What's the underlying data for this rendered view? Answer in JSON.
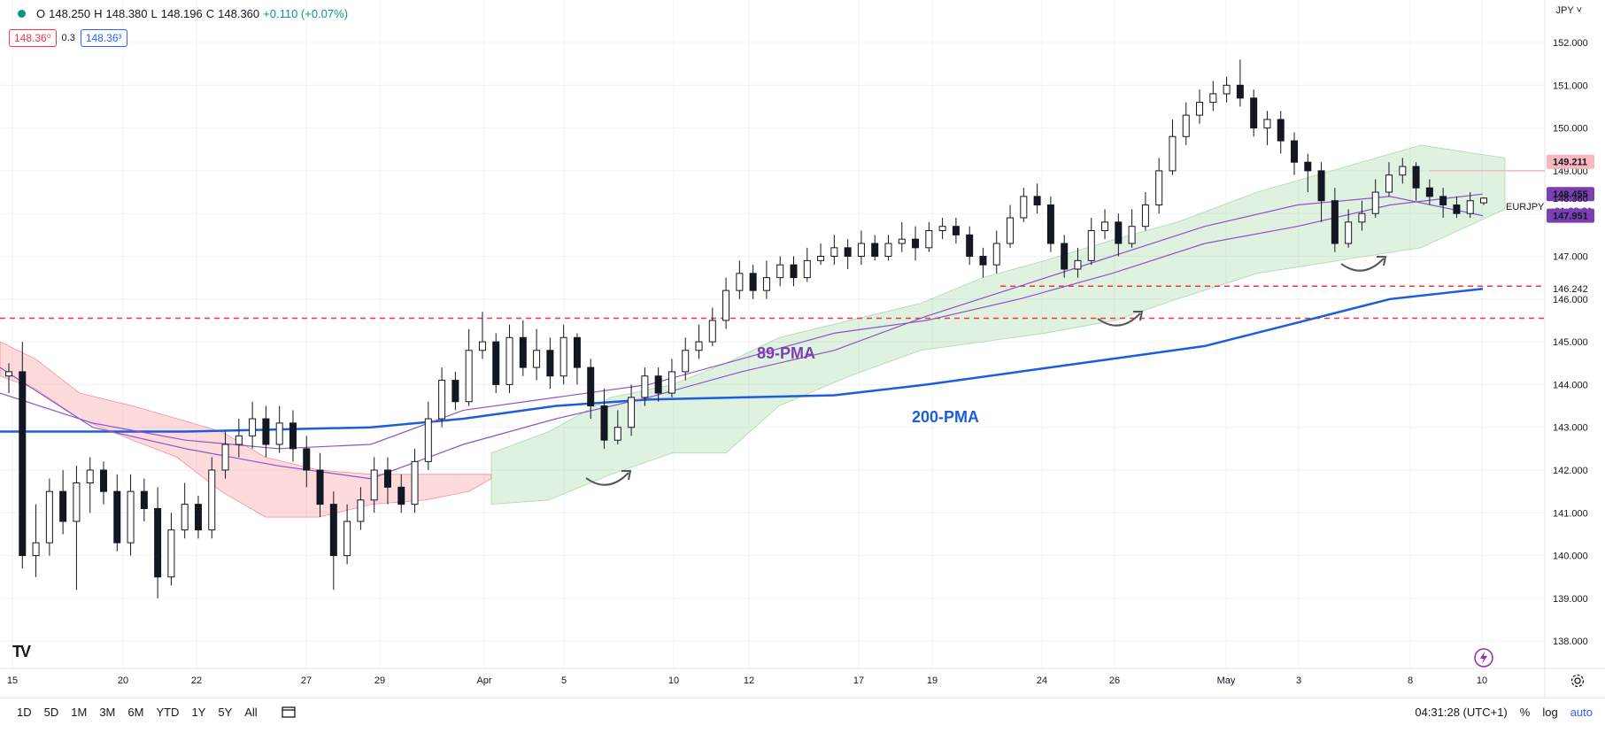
{
  "header": {
    "open_label": "O",
    "open": "148.250",
    "high_label": "H",
    "high": "148.380",
    "low_label": "L",
    "low": "148.196",
    "close_label": "C",
    "close": "148.360",
    "change": "+0.110 (+0.07%)",
    "sell_price": "148.36⁰",
    "spread": "0.3",
    "buy_price": "148.36³",
    "currency": "JPY"
  },
  "bottom_bar": {
    "ranges": [
      "1D",
      "5D",
      "1M",
      "3M",
      "6M",
      "YTD",
      "1Y",
      "5Y",
      "All"
    ],
    "clock": "04:31:28 (UTC+1)",
    "percent_label": "%",
    "log_label": "log",
    "auto_label": "auto"
  },
  "logo": "TV",
  "chart_data": {
    "type": "line",
    "symbol": "EURJPY",
    "ylim": [
      137.8,
      152.5
    ],
    "y_ticks": [
      138.0,
      139.0,
      140.0,
      141.0,
      142.0,
      143.0,
      144.0,
      145.0,
      146.0,
      147.0,
      148.0,
      149.0,
      150.0,
      151.0,
      152.0
    ],
    "x_tick_labels": [
      "15",
      "20",
      "22",
      "27",
      "29",
      "Apr",
      "5",
      "10",
      "12",
      "17",
      "19",
      "24",
      "26",
      "May",
      "3",
      "8",
      "10"
    ],
    "annotations": [
      "89-PMA",
      "200-PMA"
    ],
    "price_tags": [
      {
        "value": 149.211,
        "label": "149.211",
        "color": "#f7b7bc",
        "text_color": "#131722"
      },
      {
        "value": 148.455,
        "label": "148.455",
        "color": "#7b3fb4",
        "text_color": "#ffffff"
      },
      {
        "value": 148.36,
        "label": "148.360",
        "extra": "01:28:31",
        "color": "#ffffff",
        "text_color": "#131722"
      },
      {
        "value": 147.951,
        "label": "147.951",
        "color": "#7b3fb4",
        "text_color": "#ffffff"
      },
      {
        "value": 146.242,
        "label": "146.242",
        "color": "#ffffff",
        "text_color": "#131722"
      }
    ],
    "horizontal_levels": [
      145.55,
      146.3,
      149.0
    ],
    "series": [
      {
        "name": "200-PMA",
        "color": "#1e5cdf",
        "values": [
          142.9,
          142.9,
          142.9,
          142.95,
          143.0,
          143.2,
          143.5,
          143.65,
          143.7,
          143.75,
          144.0,
          144.3,
          144.6,
          144.9,
          145.45,
          146.0,
          146.24
        ]
      },
      {
        "name": "89-PMA",
        "color": "#8a55c9",
        "values": [
          143.8,
          143.1,
          142.7,
          142.5,
          142.6,
          143.4,
          143.7,
          144.0,
          144.6,
          145.2,
          145.5,
          146.0,
          146.6,
          147.3,
          147.7,
          148.2,
          148.455
        ]
      },
      {
        "values": [
          144.4,
          143.0,
          142.5,
          142.1,
          141.8,
          142.6,
          143.2,
          143.7,
          144.3,
          144.8,
          145.6,
          146.3,
          147.0,
          147.7,
          148.2,
          148.4,
          147.951
        ]
      }
    ],
    "candles": [
      [
        144.2,
        144.3,
        144.5,
        143.8
      ],
      [
        144.3,
        140.0,
        145.0,
        139.7
      ],
      [
        140.0,
        140.3,
        141.2,
        139.5
      ],
      [
        140.3,
        141.5,
        141.8,
        140.0
      ],
      [
        141.5,
        140.8,
        142.0,
        140.5
      ],
      [
        140.8,
        141.7,
        142.1,
        139.2
      ],
      [
        141.7,
        142.0,
        142.3,
        141.0
      ],
      [
        142.0,
        141.5,
        142.2,
        141.2
      ],
      [
        141.5,
        140.3,
        141.9,
        140.1
      ],
      [
        140.3,
        141.5,
        141.9,
        140.0
      ],
      [
        141.5,
        141.1,
        141.8,
        140.8
      ],
      [
        141.1,
        139.5,
        141.6,
        139.0
      ],
      [
        139.5,
        140.6,
        141.0,
        139.3
      ],
      [
        140.6,
        141.2,
        141.7,
        140.4
      ],
      [
        141.2,
        140.6,
        141.4,
        140.4
      ],
      [
        140.6,
        142.0,
        142.3,
        140.4
      ],
      [
        142.0,
        142.6,
        142.9,
        141.8
      ],
      [
        142.6,
        142.8,
        143.2,
        142.3
      ],
      [
        142.8,
        143.2,
        143.6,
        142.5
      ],
      [
        143.2,
        142.6,
        143.5,
        142.3
      ],
      [
        142.6,
        143.1,
        143.5,
        142.4
      ],
      [
        143.1,
        142.5,
        143.4,
        142.2
      ],
      [
        142.5,
        142.0,
        142.8,
        141.6
      ],
      [
        142.0,
        141.2,
        142.4,
        140.9
      ],
      [
        141.2,
        140.0,
        141.5,
        139.2
      ],
      [
        140.0,
        140.8,
        141.2,
        139.8
      ],
      [
        140.8,
        141.3,
        141.6,
        140.6
      ],
      [
        141.3,
        142.0,
        142.3,
        141.0
      ],
      [
        142.0,
        141.6,
        142.3,
        141.2
      ],
      [
        141.6,
        141.2,
        141.9,
        141.0
      ],
      [
        141.2,
        142.2,
        142.5,
        141.0
      ],
      [
        142.2,
        143.2,
        143.6,
        142.0
      ],
      [
        143.2,
        144.1,
        144.4,
        143.0
      ],
      [
        144.1,
        143.6,
        144.3,
        143.4
      ],
      [
        143.6,
        144.8,
        145.3,
        143.5
      ],
      [
        144.8,
        145.0,
        145.7,
        144.6
      ],
      [
        145.0,
        144.0,
        145.2,
        143.8
      ],
      [
        144.0,
        145.1,
        145.4,
        143.8
      ],
      [
        145.1,
        144.4,
        145.5,
        144.2
      ],
      [
        144.4,
        144.8,
        145.3,
        144.1
      ],
      [
        144.8,
        144.2,
        145.1,
        143.9
      ],
      [
        144.2,
        145.1,
        145.4,
        144.0
      ],
      [
        145.1,
        144.4,
        145.2,
        144.0
      ],
      [
        144.4,
        143.5,
        144.6,
        143.2
      ],
      [
        143.5,
        142.7,
        143.9,
        142.5
      ],
      [
        142.7,
        143.0,
        143.4,
        142.6
      ],
      [
        143.0,
        143.7,
        144.0,
        142.8
      ],
      [
        143.7,
        144.2,
        144.4,
        143.5
      ],
      [
        144.2,
        143.8,
        144.4,
        143.6
      ],
      [
        143.8,
        144.3,
        144.6,
        143.7
      ],
      [
        144.3,
        144.8,
        145.1,
        144.1
      ],
      [
        144.8,
        145.0,
        145.4,
        144.6
      ],
      [
        145.0,
        145.5,
        145.8,
        144.9
      ],
      [
        145.5,
        146.2,
        146.5,
        145.3
      ],
      [
        146.2,
        146.6,
        146.9,
        146.0
      ],
      [
        146.6,
        146.2,
        146.8,
        146.0
      ],
      [
        146.2,
        146.5,
        146.9,
        146.0
      ],
      [
        146.5,
        146.8,
        147.0,
        146.3
      ],
      [
        146.8,
        146.5,
        147.0,
        146.3
      ],
      [
        146.5,
        146.9,
        147.2,
        146.4
      ],
      [
        146.9,
        147.0,
        147.3,
        146.8
      ],
      [
        147.0,
        147.2,
        147.5,
        146.8
      ],
      [
        147.2,
        147.0,
        147.4,
        146.7
      ],
      [
        147.0,
        147.3,
        147.6,
        146.8
      ],
      [
        147.3,
        147.0,
        147.5,
        146.9
      ],
      [
        147.0,
        147.3,
        147.5,
        146.9
      ],
      [
        147.3,
        147.4,
        147.8,
        147.1
      ],
      [
        147.4,
        147.2,
        147.7,
        146.9
      ],
      [
        147.2,
        147.6,
        147.8,
        147.1
      ],
      [
        147.6,
        147.7,
        147.9,
        147.4
      ],
      [
        147.7,
        147.5,
        147.9,
        147.3
      ],
      [
        147.5,
        147.0,
        147.7,
        146.8
      ],
      [
        147.0,
        146.8,
        147.2,
        146.5
      ],
      [
        146.8,
        147.3,
        147.6,
        146.6
      ],
      [
        147.3,
        147.9,
        148.2,
        147.2
      ],
      [
        147.9,
        148.4,
        148.6,
        147.8
      ],
      [
        148.4,
        148.2,
        148.7,
        148.0
      ],
      [
        148.2,
        147.3,
        148.4,
        147.1
      ],
      [
        147.3,
        146.7,
        147.5,
        146.5
      ],
      [
        146.7,
        146.9,
        147.2,
        146.5
      ],
      [
        146.9,
        147.6,
        147.9,
        146.8
      ],
      [
        147.6,
        147.8,
        148.1,
        147.4
      ],
      [
        147.8,
        147.3,
        148.0,
        147.0
      ],
      [
        147.3,
        147.7,
        148.1,
        147.2
      ],
      [
        147.7,
        148.2,
        148.5,
        147.6
      ],
      [
        148.2,
        149.0,
        149.3,
        148.0
      ],
      [
        149.0,
        149.8,
        150.2,
        148.9
      ],
      [
        149.8,
        150.3,
        150.6,
        149.6
      ],
      [
        150.3,
        150.6,
        150.9,
        150.1
      ],
      [
        150.6,
        150.8,
        151.1,
        150.4
      ],
      [
        150.8,
        151.0,
        151.2,
        150.6
      ],
      [
        151.0,
        150.7,
        151.6,
        150.5
      ],
      [
        150.7,
        150.0,
        150.9,
        149.8
      ],
      [
        150.0,
        150.2,
        150.4,
        149.6
      ],
      [
        150.2,
        149.7,
        150.4,
        149.4
      ],
      [
        149.7,
        149.2,
        149.9,
        148.9
      ],
      [
        149.2,
        149.0,
        149.4,
        148.5
      ],
      [
        149.0,
        148.3,
        149.2,
        147.8
      ],
      [
        148.3,
        147.3,
        148.6,
        147.1
      ],
      [
        147.3,
        147.8,
        148.1,
        147.2
      ],
      [
        147.8,
        148.0,
        148.3,
        147.6
      ],
      [
        148.0,
        148.5,
        148.8,
        147.9
      ],
      [
        148.5,
        148.9,
        149.2,
        148.4
      ],
      [
        148.9,
        149.1,
        149.3,
        148.7
      ],
      [
        149.1,
        148.6,
        149.2,
        148.3
      ],
      [
        148.6,
        148.4,
        148.8,
        148.2
      ],
      [
        148.4,
        148.2,
        148.6,
        147.9
      ],
      [
        148.2,
        148.0,
        148.4,
        147.9
      ],
      [
        148.0,
        148.3,
        148.5,
        147.9
      ],
      [
        148.25,
        148.36,
        148.38,
        148.196
      ]
    ],
    "cloud_segments": [
      {
        "color": "red",
        "top": [
          145.0,
          144.6,
          143.8,
          143.5,
          143.2,
          142.9,
          142.3,
          142.0,
          141.9,
          141.9,
          141.9,
          141.9
        ],
        "bottom": [
          144.2,
          143.9,
          143.2,
          142.7,
          142.3,
          141.5,
          140.9,
          140.9,
          141.2,
          141.3,
          141.5,
          141.8
        ]
      },
      {
        "color": "green",
        "top": [
          142.4,
          142.9,
          143.7,
          144.0,
          144.5,
          145.1,
          145.5,
          145.9,
          146.5,
          146.9,
          147.4,
          147.8,
          148.5,
          149.6,
          149.3
        ],
        "bottom": [
          141.2,
          141.3,
          141.9,
          142.4,
          142.4,
          143.5,
          144.2,
          144.8,
          145.0,
          145.2,
          145.5,
          146.0,
          146.6,
          147.2,
          148.1
        ]
      }
    ],
    "grid": true,
    "last_price": 148.36
  }
}
